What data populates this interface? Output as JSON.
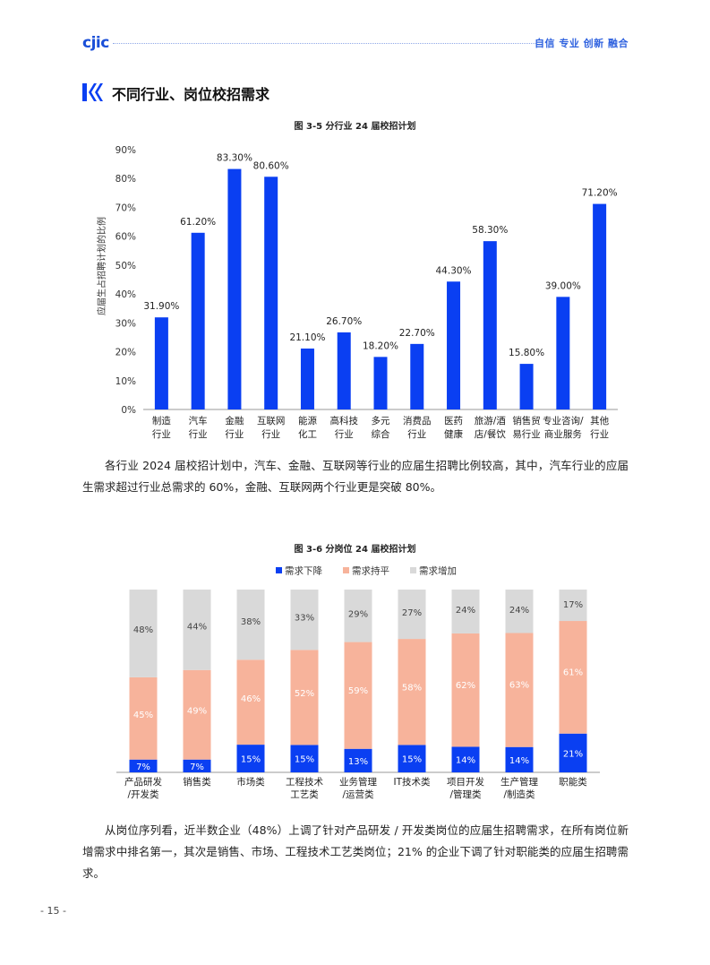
{
  "header": {
    "logo": "cjic",
    "slogan": "自信 专业 创新 融合"
  },
  "section": {
    "title": "不同行业、岗位校招需求"
  },
  "figure1": {
    "title": "图 3-5  分行业 24 届校招计划",
    "chart_data": {
      "type": "bar",
      "title": "图 3-5  分行业 24 届校招计划",
      "ylabel": "应届生占招聘计划的比例",
      "ylim": [
        0,
        90
      ],
      "yticks": [
        "0%",
        "10%",
        "20%",
        "30%",
        "40%",
        "50%",
        "60%",
        "70%",
        "80%",
        "90%"
      ],
      "categories": [
        [
          "制造",
          "行业"
        ],
        [
          "汽车",
          "行业"
        ],
        [
          "金融",
          "行业"
        ],
        [
          "互联网",
          "行业"
        ],
        [
          "能源",
          "化工"
        ],
        [
          "高科技",
          "行业"
        ],
        [
          "多元",
          "综合"
        ],
        [
          "消费品",
          "行业"
        ],
        [
          "医药",
          "健康"
        ],
        [
          "旅游/酒",
          "店/餐饮"
        ],
        [
          "销售贸",
          "易行业"
        ],
        [
          "专业咨询/",
          "商业服务"
        ],
        [
          "其他",
          "行业"
        ]
      ],
      "values": [
        31.9,
        61.2,
        83.3,
        80.6,
        21.1,
        26.7,
        18.2,
        22.7,
        44.3,
        58.3,
        15.8,
        39.0,
        71.2
      ],
      "labels": [
        "31.90%",
        "61.20%",
        "83.30%",
        "80.60%",
        "21.10%",
        "26.70%",
        "18.20%",
        "22.70%",
        "44.30%",
        "58.30%",
        "15.80%",
        "39.00%",
        "71.20%"
      ],
      "color": "#0a3ff2"
    }
  },
  "paragraph1": "各行业 2024 届校招计划中，汽车、金融、互联网等行业的应届生招聘比例较高，其中，汽车行业的应届生需求超过行业总需求的 60%，金融、互联网两个行业更是突破 80%。",
  "figure2": {
    "title": "图 3-6  分岗位 24 届校招计划",
    "chart_data": {
      "type": "bar",
      "stacked": true,
      "title": "图 3-6  分岗位 24 届校招计划",
      "legend_position": "top",
      "categories": [
        [
          "产品研发",
          "/开发类"
        ],
        [
          "销售类"
        ],
        [
          "市场类"
        ],
        [
          "工程技术",
          "工艺类"
        ],
        [
          "业务管理",
          "/运营类"
        ],
        [
          "IT技术类"
        ],
        [
          "项目开发",
          "/管理类"
        ],
        [
          "生产管理",
          "/制造类"
        ],
        [
          "职能类"
        ]
      ],
      "series": [
        {
          "name": "需求下降",
          "color": "#0a3ff2",
          "values": [
            7,
            7,
            15,
            15,
            13,
            15,
            14,
            14,
            21
          ],
          "labels": [
            "7%",
            "7%",
            "15%",
            "15%",
            "13%",
            "15%",
            "14%",
            "14%",
            "21%"
          ]
        },
        {
          "name": "需求持平",
          "color": "#f7b39b",
          "values": [
            45,
            49,
            46,
            52,
            59,
            58,
            62,
            63,
            61
          ],
          "labels": [
            "45%",
            "49%",
            "46%",
            "52%",
            "59%",
            "58%",
            "62%",
            "63%",
            "61%"
          ]
        },
        {
          "name": "需求增加",
          "color": "#d9d9d9",
          "values": [
            48,
            44,
            38,
            33,
            29,
            27,
            24,
            24,
            17
          ],
          "labels": [
            "48%",
            "44%",
            "38%",
            "33%",
            "29%",
            "27%",
            "24%",
            "24%",
            "17%"
          ]
        }
      ]
    }
  },
  "paragraph2": "从岗位序列看，近半数企业（48%）上调了针对产品研发 / 开发类岗位的应届生招聘需求，在所有岗位新增需求中排名第一，其次是销售、市场、工程技术工艺类岗位；21% 的企业下调了针对职能类的应届生招聘需求。",
  "page_number": "- 15 -"
}
